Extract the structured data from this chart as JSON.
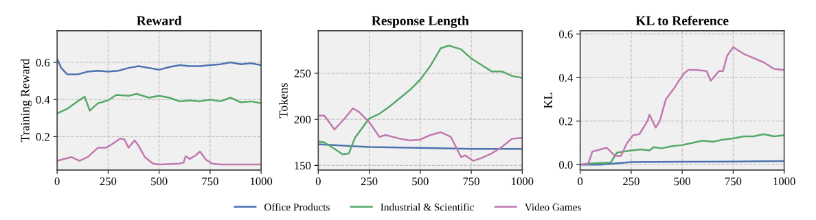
{
  "chart_data": [
    {
      "type": "line",
      "title": "Reward",
      "ylabel": "Training Reward",
      "xlim": [
        0,
        1000
      ],
      "xticks": [
        0,
        250,
        500,
        750,
        1000
      ],
      "ylim": [
        0.02,
        0.77
      ],
      "yticks": [
        0.2,
        0.4,
        0.6
      ],
      "grid": true,
      "legend": "bottom",
      "line_style": "solid",
      "series": [
        {
          "name": "Office Products",
          "color": "#4c72b0",
          "x": [
            0,
            20,
            50,
            100,
            150,
            200,
            250,
            300,
            350,
            400,
            450,
            500,
            550,
            600,
            650,
            700,
            750,
            800,
            850,
            900,
            950,
            1000
          ],
          "values": [
            0.62,
            0.57,
            0.535,
            0.535,
            0.55,
            0.555,
            0.55,
            0.555,
            0.57,
            0.58,
            0.57,
            0.56,
            0.575,
            0.585,
            0.58,
            0.58,
            0.585,
            0.59,
            0.6,
            0.59,
            0.595,
            0.585
          ]
        },
        {
          "name": "Industrial & Scientific",
          "color": "#55a868",
          "x": [
            0,
            50,
            100,
            135,
            160,
            200,
            250,
            290,
            350,
            390,
            450,
            500,
            550,
            600,
            650,
            700,
            750,
            800,
            850,
            900,
            950,
            1000
          ],
          "values": [
            0.325,
            0.35,
            0.39,
            0.415,
            0.34,
            0.38,
            0.395,
            0.425,
            0.42,
            0.43,
            0.41,
            0.42,
            0.41,
            0.39,
            0.395,
            0.39,
            0.4,
            0.39,
            0.41,
            0.385,
            0.39,
            0.38
          ]
        },
        {
          "name": "Video Games",
          "color": "#c178b0",
          "x": [
            0,
            70,
            110,
            150,
            200,
            240,
            270,
            310,
            330,
            350,
            380,
            400,
            430,
            470,
            500,
            600,
            620,
            630,
            650,
            680,
            700,
            730,
            760,
            800,
            1000
          ],
          "values": [
            0.07,
            0.09,
            0.07,
            0.09,
            0.14,
            0.14,
            0.16,
            0.19,
            0.185,
            0.14,
            0.18,
            0.15,
            0.09,
            0.055,
            0.05,
            0.055,
            0.06,
            0.095,
            0.08,
            0.1,
            0.12,
            0.075,
            0.055,
            0.05,
            0.05
          ]
        }
      ]
    },
    {
      "type": "line",
      "title": "Response Length",
      "ylabel": "Tokens",
      "xlim": [
        0,
        1000
      ],
      "xticks": [
        0,
        250,
        500,
        750,
        1000
      ],
      "ylim": [
        145,
        296
      ],
      "yticks": [
        150,
        200,
        250
      ],
      "grid": true,
      "legend": "bottom",
      "line_style": "solid",
      "series": [
        {
          "name": "Office Products",
          "color": "#4c72b0",
          "x": [
            0,
            250,
            500,
            750,
            1000
          ],
          "values": [
            173,
            170,
            169,
            168,
            168
          ]
        },
        {
          "name": "Industrial & Scientific",
          "color": "#55a868",
          "x": [
            0,
            30,
            80,
            120,
            150,
            180,
            250,
            300,
            350,
            400,
            450,
            500,
            550,
            600,
            640,
            700,
            750,
            800,
            850,
            900,
            950,
            1000
          ],
          "values": [
            176,
            175,
            168,
            162,
            163,
            180,
            201,
            206,
            214,
            223,
            232,
            243,
            258,
            277,
            280,
            276,
            266,
            259,
            252,
            252,
            247,
            245
          ]
        },
        {
          "name": "Video Games",
          "color": "#c178b0",
          "x": [
            0,
            30,
            80,
            130,
            170,
            200,
            250,
            300,
            330,
            400,
            450,
            500,
            550,
            600,
            650,
            700,
            720,
            760,
            800,
            850,
            900,
            950,
            1000
          ],
          "values": [
            204,
            204,
            189,
            201,
            212,
            208,
            197,
            181,
            183,
            179,
            177,
            178,
            183,
            186,
            181,
            159,
            161,
            155,
            158,
            163,
            170,
            179,
            180
          ]
        }
      ]
    },
    {
      "type": "line",
      "title": "KL to Reference",
      "ylabel": "KL",
      "xlim": [
        0,
        1000
      ],
      "xticks": [
        0,
        250,
        500,
        750,
        1000
      ],
      "ylim": [
        -0.025,
        0.615
      ],
      "yticks": [
        {
          "value": 0,
          "label": "0.0"
        },
        0.2,
        0.4,
        0.6
      ],
      "grid": true,
      "legend": "bottom",
      "line_style": "solid",
      "series": [
        {
          "name": "Office Products",
          "color": "#4c72b0",
          "x": [
            0,
            100,
            200,
            250,
            500,
            750,
            1000
          ],
          "values": [
            0,
            0,
            0.008,
            0.012,
            0.013,
            0.014,
            0.016
          ]
        },
        {
          "name": "Industrial & Scientific",
          "color": "#55a868",
          "x": [
            0,
            50,
            150,
            180,
            250,
            300,
            340,
            360,
            400,
            450,
            500,
            550,
            600,
            650,
            700,
            750,
            800,
            850,
            900,
            950,
            1000
          ],
          "values": [
            0,
            0.005,
            0.01,
            0.055,
            0.065,
            0.07,
            0.065,
            0.08,
            0.075,
            0.085,
            0.09,
            0.1,
            0.11,
            0.105,
            0.115,
            0.12,
            0.13,
            0.13,
            0.14,
            0.13,
            0.135
          ]
        },
        {
          "name": "Video Games",
          "color": "#c178b0",
          "x": [
            0,
            40,
            60,
            100,
            130,
            170,
            200,
            230,
            260,
            290,
            310,
            330,
            340,
            370,
            390,
            420,
            460,
            480,
            510,
            530,
            570,
            620,
            640,
            680,
            700,
            720,
            750,
            800,
            850,
            900,
            950,
            1000
          ],
          "values": [
            0,
            0.005,
            0.06,
            0.07,
            0.078,
            0.04,
            0.04,
            0.1,
            0.135,
            0.14,
            0.17,
            0.2,
            0.23,
            0.17,
            0.2,
            0.3,
            0.35,
            0.38,
            0.42,
            0.435,
            0.435,
            0.43,
            0.385,
            0.43,
            0.43,
            0.5,
            0.54,
            0.51,
            0.49,
            0.47,
            0.44,
            0.435
          ]
        }
      ]
    }
  ]
}
